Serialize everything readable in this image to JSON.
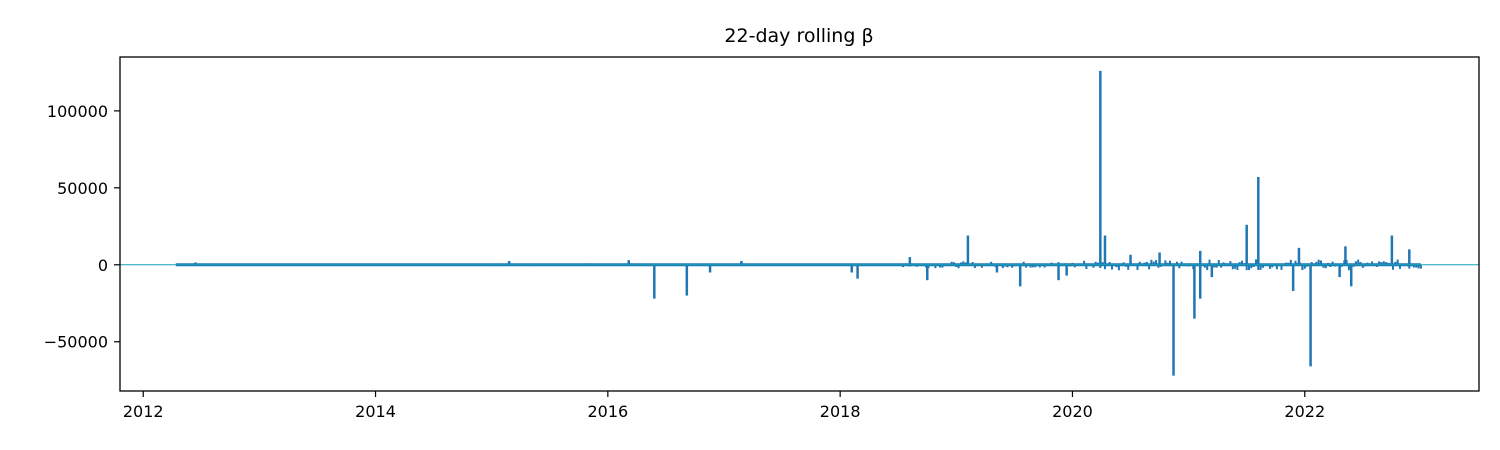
{
  "chart_data": {
    "type": "line",
    "title": "22-day rolling β",
    "xlabel": "",
    "ylabel": "",
    "x_tick_labels": [
      "2012",
      "2014",
      "2016",
      "2018",
      "2020",
      "2022"
    ],
    "y_tick_labels": [
      "−50000",
      "0",
      "50000",
      "100000"
    ],
    "x_ticks": [
      2012,
      2014,
      2016,
      2018,
      2020,
      2022
    ],
    "y_ticks": [
      -50000,
      0,
      50000,
      100000
    ],
    "xlim": [
      2011.8,
      2023.5
    ],
    "ylim": [
      -82000,
      135000
    ],
    "grid": false,
    "legend": false,
    "reference_line": {
      "y": 0,
      "color": "#17a2b8"
    },
    "series": [
      {
        "color": "#1f77b4",
        "x_range": [
          2012.28,
          2023.0
        ],
        "spikes": [
          {
            "x": 2012.45,
            "y": 1500
          },
          {
            "x": 2015.15,
            "y": 2500
          },
          {
            "x": 2016.18,
            "y": 3000
          },
          {
            "x": 2016.4,
            "y": -22000
          },
          {
            "x": 2016.68,
            "y": -20000
          },
          {
            "x": 2016.88,
            "y": -5000
          },
          {
            "x": 2017.15,
            "y": 2500
          },
          {
            "x": 2018.1,
            "y": -5000
          },
          {
            "x": 2018.15,
            "y": -9000
          },
          {
            "x": 2018.6,
            "y": 5000
          },
          {
            "x": 2018.75,
            "y": -10000
          },
          {
            "x": 2019.1,
            "y": 19000
          },
          {
            "x": 2019.35,
            "y": -5000
          },
          {
            "x": 2019.55,
            "y": -14000
          },
          {
            "x": 2019.88,
            "y": -10000
          },
          {
            "x": 2019.95,
            "y": -7000
          },
          {
            "x": 2020.24,
            "y": 126000
          },
          {
            "x": 2020.28,
            "y": 19000
          },
          {
            "x": 2020.5,
            "y": 6500
          },
          {
            "x": 2020.75,
            "y": 8000
          },
          {
            "x": 2020.87,
            "y": -72000
          },
          {
            "x": 2021.05,
            "y": -35000
          },
          {
            "x": 2021.1,
            "y": -22000
          },
          {
            "x": 2021.1,
            "y": 9000
          },
          {
            "x": 2021.2,
            "y": -8000
          },
          {
            "x": 2021.5,
            "y": 26000
          },
          {
            "x": 2021.6,
            "y": 57000
          },
          {
            "x": 2021.9,
            "y": -17000
          },
          {
            "x": 2021.95,
            "y": 11000
          },
          {
            "x": 2022.05,
            "y": -66000
          },
          {
            "x": 2022.3,
            "y": -8000
          },
          {
            "x": 2022.35,
            "y": 12000
          },
          {
            "x": 2022.4,
            "y": -14000
          },
          {
            "x": 2022.75,
            "y": 19000
          },
          {
            "x": 2022.9,
            "y": 10000
          }
        ]
      }
    ]
  }
}
